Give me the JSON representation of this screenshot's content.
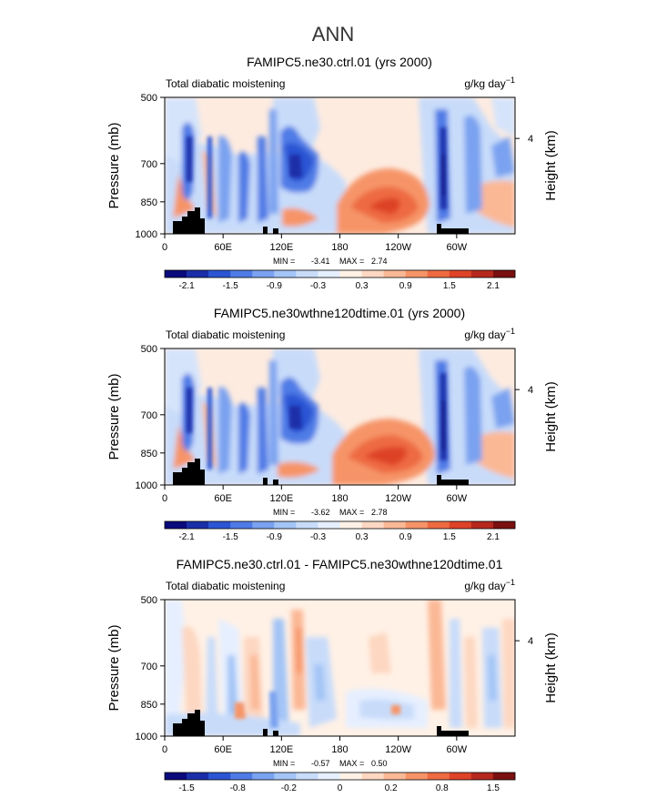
{
  "figure_title": "ANN",
  "chart_data": [
    {
      "type": "heatmap",
      "title": "FAMIPC5.ne30.ctrl.01 (yrs 2000)",
      "subtitle_left": "Total diabatic moistening",
      "units": "g/kg day",
      "units_exp": "−1",
      "ylabel": "Pressure (mb)",
      "ylabel_right": "Height (km)",
      "yticks": [
        "500",
        "700",
        "850",
        "1000"
      ],
      "yticks_right": [
        "4"
      ],
      "xticks": [
        "0",
        "60E",
        "120E",
        "180",
        "120W",
        "60W"
      ],
      "xlim": [
        0,
        360
      ],
      "stats": {
        "min_label": "MIN =",
        "min": "-3.41",
        "max_label": "MAX =",
        "max": "2.74"
      },
      "colorbar_labels": [
        "-2.1",
        "-1.5",
        "-0.9",
        "-0.3",
        "0.3",
        "0.9",
        "1.5",
        "2.1"
      ],
      "colorbar_colors": [
        "#0a0a7c",
        "#1a2ea8",
        "#2b55d3",
        "#4f7be6",
        "#7aa2f0",
        "#a3c4f6",
        "#c8dcfa",
        "#e6efff",
        "#fff1e6",
        "#fdd7c1",
        "#fbb895",
        "#f69468",
        "#ee6b42",
        "#de4328",
        "#b6281d",
        "#7a1010"
      ]
    },
    {
      "type": "heatmap",
      "title": "FAMIPC5.ne30wthne120dtime.01 (yrs 2000)",
      "subtitle_left": "Total diabatic moistening",
      "units": "g/kg day",
      "units_exp": "−1",
      "ylabel": "Pressure (mb)",
      "ylabel_right": "Height (km)",
      "yticks": [
        "500",
        "700",
        "850",
        "1000"
      ],
      "yticks_right": [
        "4"
      ],
      "xticks": [
        "0",
        "60E",
        "120E",
        "180",
        "120W",
        "60W"
      ],
      "xlim": [
        0,
        360
      ],
      "stats": {
        "min_label": "MIN =",
        "min": "-3.62",
        "max_label": "MAX =",
        "max": "2.78"
      },
      "colorbar_labels": [
        "-2.1",
        "-1.5",
        "-0.9",
        "-0.3",
        "0.3",
        "0.9",
        "1.5",
        "2.1"
      ],
      "colorbar_colors": [
        "#0a0a7c",
        "#1a2ea8",
        "#2b55d3",
        "#4f7be6",
        "#7aa2f0",
        "#a3c4f6",
        "#c8dcfa",
        "#e6efff",
        "#fff1e6",
        "#fdd7c1",
        "#fbb895",
        "#f69468",
        "#ee6b42",
        "#de4328",
        "#b6281d",
        "#7a1010"
      ]
    },
    {
      "type": "heatmap",
      "title": "FAMIPC5.ne30.ctrl.01 - FAMIPC5.ne30wthne120dtime.01",
      "subtitle_left": "Total diabatic moistening",
      "units": "g/kg day",
      "units_exp": "−1",
      "ylabel": "Pressure (mb)",
      "ylabel_right": "Height (km)",
      "yticks": [
        "500",
        "700",
        "850",
        "1000"
      ],
      "yticks_right": [
        "4"
      ],
      "xticks": [
        "0",
        "60E",
        "120E",
        "180",
        "120W",
        "60W"
      ],
      "xlim": [
        0,
        360
      ],
      "stats": {
        "min_label": "MIN =",
        "min": "-0.57",
        "max_label": "MAX =",
        "max": "0.50"
      },
      "colorbar_labels": [
        "-1.5",
        "-0.8",
        "-0.2",
        "0",
        "0.2",
        "0.8",
        "1.5"
      ],
      "colorbar_colors": [
        "#0a0a7c",
        "#1a2ea8",
        "#2b55d3",
        "#4f7be6",
        "#7aa2f0",
        "#a3c4f6",
        "#c8dcfa",
        "#e6efff",
        "#fff1e6",
        "#fdd7c1",
        "#fbb895",
        "#f69468",
        "#ee6b42",
        "#de4328",
        "#b6281d",
        "#7a1010"
      ]
    }
  ]
}
